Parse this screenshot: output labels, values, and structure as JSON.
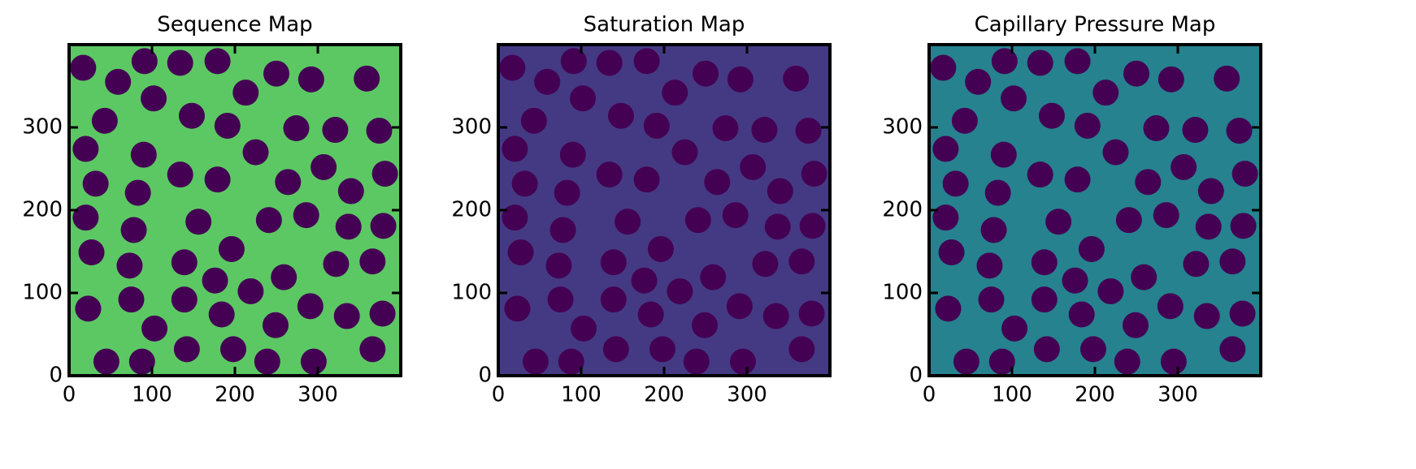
{
  "particles": {
    "color": "#440154",
    "x": [
      17,
      59,
      91,
      134,
      179,
      250,
      292,
      359,
      102,
      213,
      43,
      148,
      191,
      274,
      321,
      374,
      20,
      225,
      90,
      32,
      134,
      179,
      264,
      307,
      381,
      340,
      83,
      20,
      156,
      241,
      286,
      337,
      379,
      78,
      27,
      196,
      73,
      139,
      176,
      259,
      322,
      366,
      139,
      23,
      75,
      184,
      219,
      291,
      335,
      378,
      103,
      249,
      366,
      45,
      88,
      142,
      198,
      239,
      295
    ],
    "y": [
      372,
      355,
      380,
      378,
      380,
      365,
      358,
      359,
      335,
      342,
      308,
      314,
      302,
      299,
      297,
      296,
      274,
      270,
      267,
      232,
      243,
      237,
      234,
      252,
      244,
      223,
      221,
      191,
      186,
      188,
      194,
      180,
      181,
      176,
      149,
      153,
      133,
      137,
      115,
      119,
      135,
      138,
      92,
      81,
      92,
      74,
      102,
      84,
      72,
      75,
      57,
      61,
      32,
      17,
      17,
      32,
      32,
      17,
      17
    ]
  },
  "chart_data": [
    {
      "type": "image",
      "title": "Sequence Map",
      "color": "#5cc863",
      "xlim": [
        0,
        400
      ],
      "ylim": [
        0,
        400
      ],
      "xticks": [
        0,
        100,
        200,
        300
      ],
      "yticks": [
        0,
        100,
        200,
        300
      ]
    },
    {
      "type": "image",
      "title": "Saturation Map",
      "color": "#443a83",
      "xlim": [
        0,
        400
      ],
      "ylim": [
        0,
        400
      ],
      "xticks": [
        0,
        100,
        200,
        300
      ],
      "yticks": [
        0,
        100,
        200,
        300
      ]
    },
    {
      "type": "image",
      "title": "Capillary Pressure Map",
      "color": "#26828e",
      "xlim": [
        0,
        400
      ],
      "ylim": [
        0,
        400
      ],
      "xticks": [
        0,
        100,
        200,
        300
      ],
      "yticks": [
        0,
        100,
        200,
        300
      ]
    }
  ]
}
